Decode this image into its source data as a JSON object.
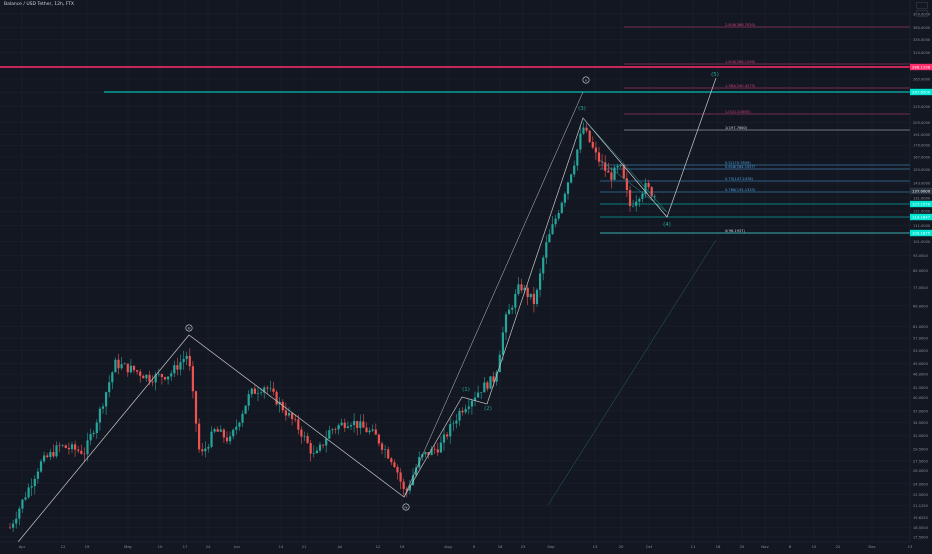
{
  "header": {
    "title": "Balance / USD Tether, 12h, FTX"
  },
  "colors": {
    "background": "#131722",
    "grid": "#1e222d",
    "up_candle": "#26a69a",
    "down_candle": "#ef5350",
    "cyan_line": "#00e5d4",
    "pink_line": "#ff2d6b",
    "fib_pink": "#d4407a",
    "fib_blue": "#4aa3df",
    "fib_white": "#d1d4dc",
    "wave_line": "#c8c8c8"
  },
  "chart_data": {
    "type": "candlestick",
    "x_tick_labels": [
      "Apr",
      "12",
      "19",
      "May",
      "10",
      "17",
      "24",
      "Jun",
      "14",
      "21",
      "Jul",
      "12",
      "19",
      "Aug",
      "9",
      "16",
      "23",
      "Sep",
      "13",
      "20",
      "Oct",
      "11",
      "18",
      "25",
      "Nov",
      "8",
      "15",
      "22",
      "Dec",
      "13"
    ],
    "y_tick_labels": [
      "390.0000",
      "360.0000",
      "335.0000",
      "310.0000",
      "285.0000",
      "265.0000",
      "245.0000",
      "225.0000",
      "205.0000",
      "191.0000",
      "179.0000",
      "167.0000",
      "155.0000",
      "143.0000",
      "131.0000",
      "121.0000",
      "111.0000",
      "101.0000",
      "93.0000",
      "85.0000",
      "77.0000",
      "69.0000",
      "61.0000",
      "57.0000",
      "53.0000",
      "49.0000",
      "46.0000",
      "42.5000",
      "40.0000",
      "37.0000",
      "34.5000",
      "32.0000",
      "29.5000",
      "27.5000",
      "26.0000",
      "24.0000",
      "22.5000",
      "21.1250",
      "19.6250",
      "18.5000",
      "17.5000"
    ],
    "price_labels": [
      {
        "text": "288.1298",
        "color": "#ff2d6b"
      },
      {
        "text": "247.6500",
        "color": "#00e5d4"
      },
      {
        "text": "137.0000",
        "color": "#2a3442"
      },
      {
        "text": "127.1570",
        "color": "#00e5d4"
      },
      {
        "text": "114.1847",
        "color": "#00e5d4"
      },
      {
        "text": "100.1875",
        "color": "#00e5d4"
      }
    ],
    "fib_levels": [
      {
        "label": "2.618(386.7020)",
        "color": "#d4407a"
      },
      {
        "label": "1.618(288.1298)",
        "color": "#d4407a"
      },
      {
        "label": "1.382(240.4275)",
        "color": "#d4407a"
      },
      {
        "label": "1.0(213.0655)",
        "color": "#d4407a"
      },
      {
        "label": "1(197.7680)",
        "color": "#d1d4dc"
      },
      {
        "label": "0.5(170.7809)",
        "color": "#4aa3df"
      },
      {
        "label": "0.618(164.1927)",
        "color": "#4aa3df"
      },
      {
        "label": "0.75(147.2478)",
        "color": "#4aa3df"
      },
      {
        "label": "0.786(135.1333)",
        "color": "#4aa3df"
      },
      {
        "label": "0(96.1937)",
        "color": "#d1d4dc"
      }
    ],
    "wave_labels": [
      "(1)",
      "(2)",
      "(3)",
      "(4)",
      "(5)"
    ],
    "circled_labels": [
      "iii",
      "iv",
      "v"
    ]
  }
}
